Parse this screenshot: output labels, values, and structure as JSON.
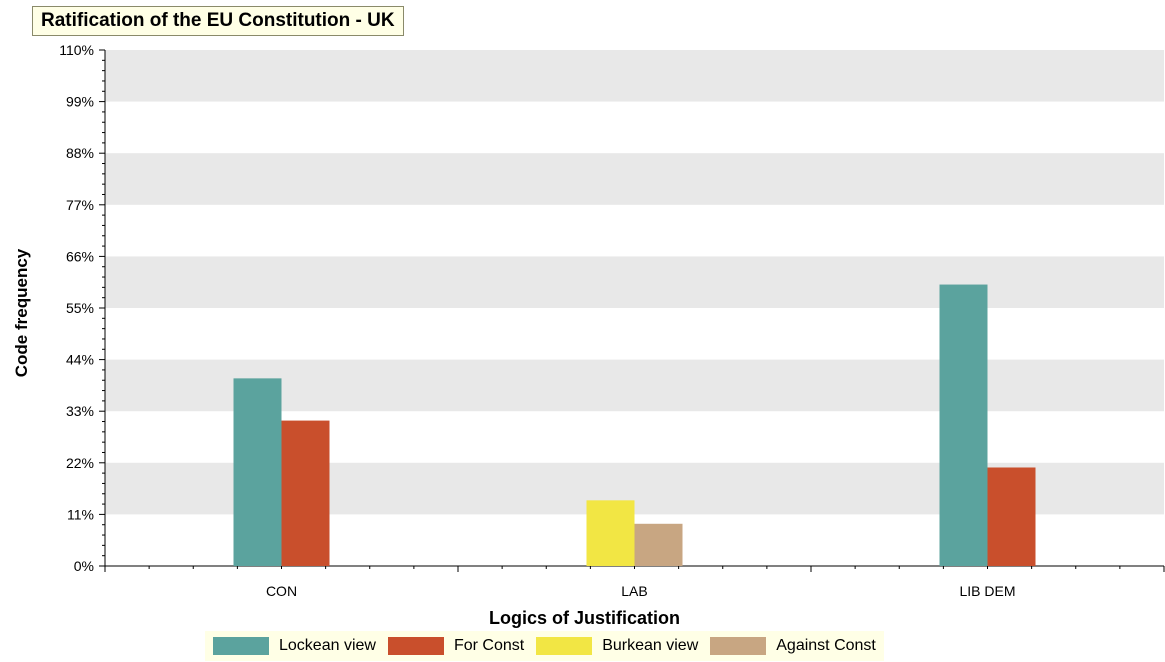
{
  "chart_data": {
    "type": "bar",
    "title": "Ratification of the EU Constitution - UK",
    "xlabel": "Logics of Justification",
    "ylabel": "Code frequency",
    "categories": [
      "CON",
      "LAB",
      "LIB DEM"
    ],
    "ylim": [
      0,
      110
    ],
    "yticks": [
      "0%",
      "11%",
      "22%",
      "33%",
      "44%",
      "55%",
      "66%",
      "77%",
      "88%",
      "99%",
      "110%"
    ],
    "grid": "alternating horizontal bands",
    "legend_position": "bottom",
    "series": [
      {
        "name": "Lockean view",
        "color": "#5ba39e",
        "values": [
          40,
          0,
          60
        ]
      },
      {
        "name": "For Const",
        "color": "#c94f2c",
        "values": [
          31,
          0,
          21
        ]
      },
      {
        "name": "Burkean view",
        "color": "#f2e644",
        "values": [
          0,
          14,
          0
        ]
      },
      {
        "name": "Against Const",
        "color": "#c8a682",
        "values": [
          0,
          9,
          0
        ]
      }
    ]
  }
}
